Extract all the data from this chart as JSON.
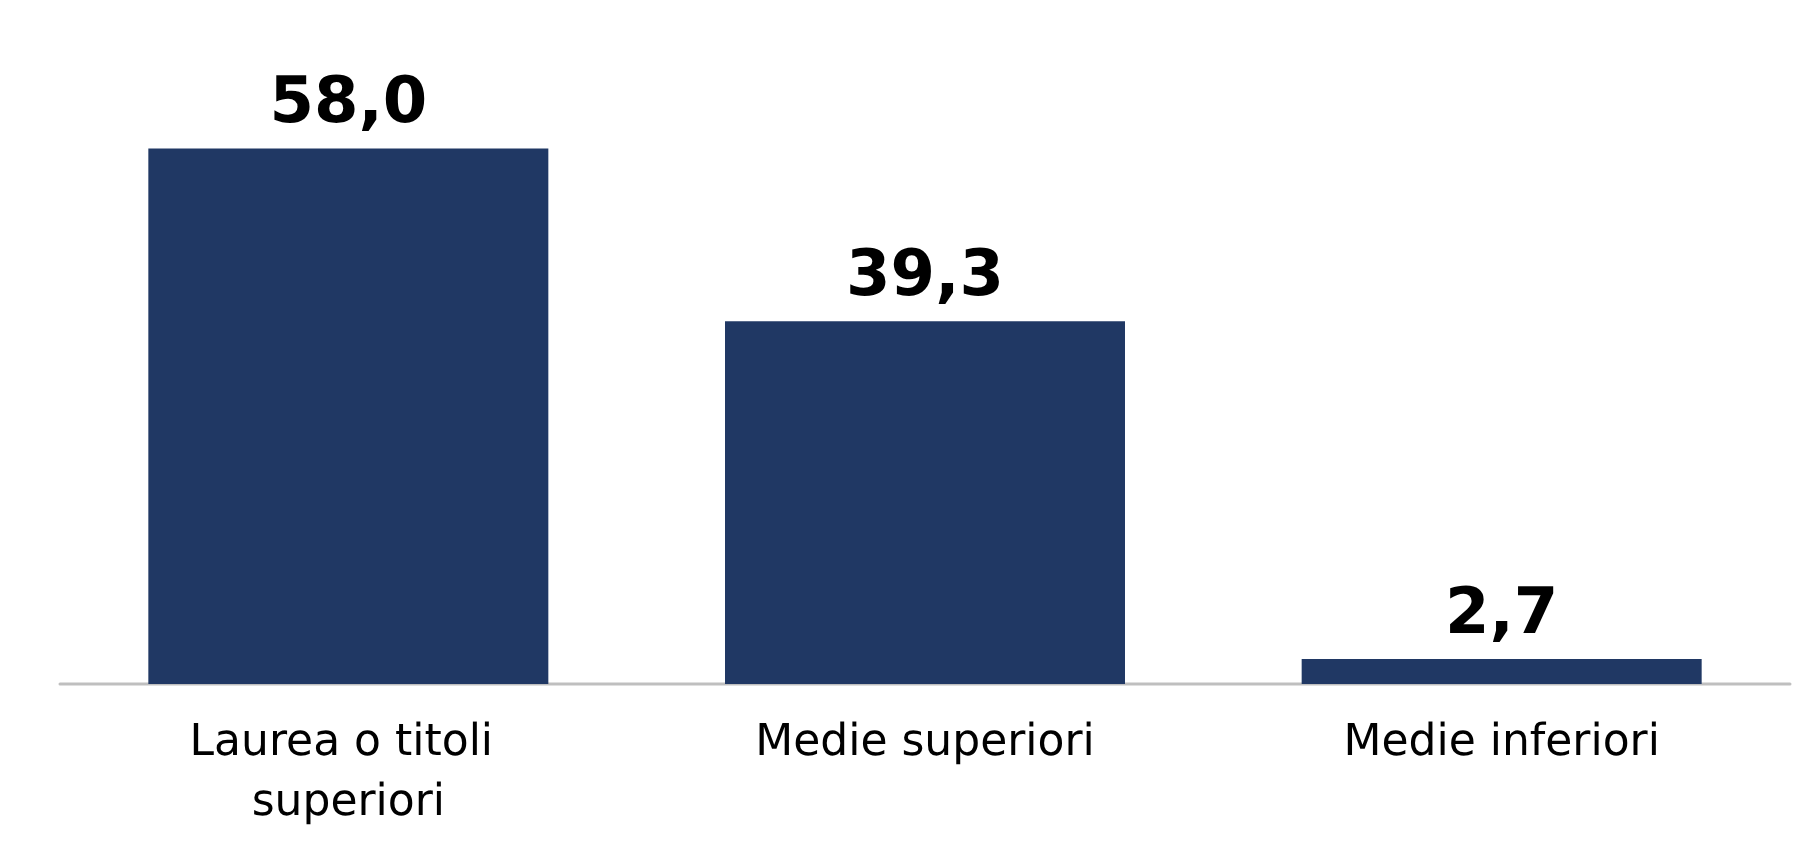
{
  "chart_data": {
    "type": "bar",
    "categories": [
      "Laurea o titoli superiori",
      "Medie superiori",
      "Medie inferiori"
    ],
    "values": [
      58.0,
      39.3,
      2.7
    ],
    "color": "#203864",
    "value_labels": [
      "58,0",
      "39,3",
      "2,7"
    ]
  }
}
